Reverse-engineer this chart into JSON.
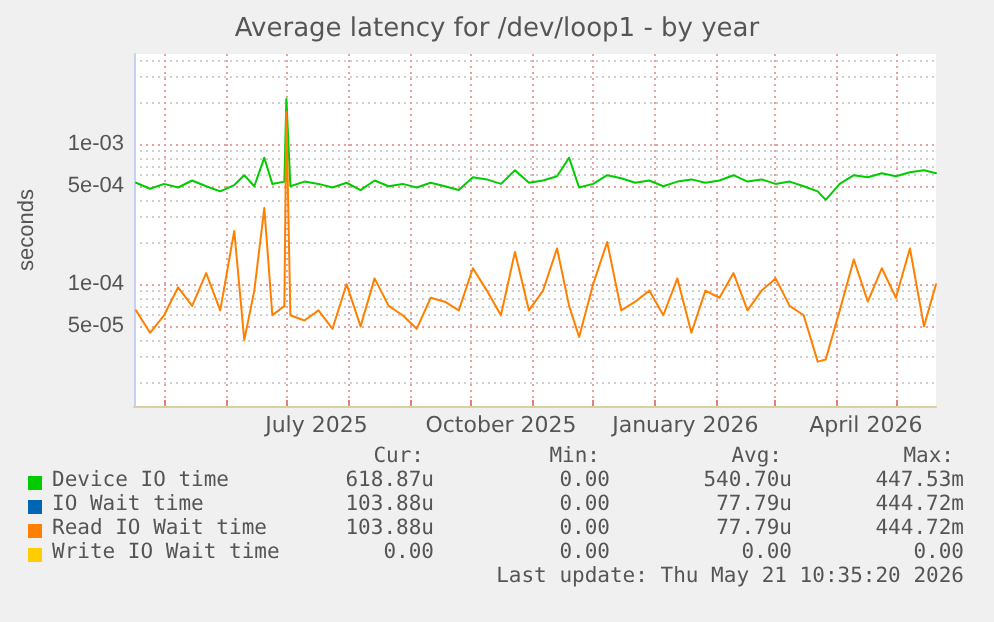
{
  "chart_data": {
    "type": "line",
    "title": "Average latency for /dev/loop1 - by year",
    "ylabel": "seconds",
    "log": "y",
    "grid": true,
    "legend": "bottom",
    "line_style": "solid",
    "marker": "none",
    "xlim": [
      "2025-04-16",
      "2026-05-21"
    ],
    "xticks": [
      {
        "value": "2025-05-01",
        "label": null
      },
      {
        "value": "2025-06-01",
        "label": null
      },
      {
        "value": "2025-07-01",
        "label": null
      },
      {
        "value": "2025-07-16",
        "label": "July 2025"
      },
      {
        "value": "2025-08-01",
        "label": null
      },
      {
        "value": "2025-09-01",
        "label": null
      },
      {
        "value": "2025-10-01",
        "label": null
      },
      {
        "value": "2025-10-16",
        "label": "October 2025"
      },
      {
        "value": "2025-11-01",
        "label": null
      },
      {
        "value": "2025-12-01",
        "label": null
      },
      {
        "value": "2026-01-01",
        "label": null
      },
      {
        "value": "2026-01-16",
        "label": "January 2026"
      },
      {
        "value": "2026-02-01",
        "label": null
      },
      {
        "value": "2026-03-01",
        "label": null
      },
      {
        "value": "2026-04-01",
        "label": null
      },
      {
        "value": "2026-04-16",
        "label": "April 2026"
      },
      {
        "value": "2026-05-01",
        "label": null
      }
    ],
    "ylim": [
      1.35e-05,
      0.0044
    ],
    "yticks": [
      {
        "value": 2e-05,
        "label": null
      },
      {
        "value": 3e-05,
        "label": null
      },
      {
        "value": 4e-05,
        "label": null
      },
      {
        "value": 5e-05,
        "label": "5e-05"
      },
      {
        "value": 6e-05,
        "label": null
      },
      {
        "value": 7e-05,
        "label": null
      },
      {
        "value": 8e-05,
        "label": null
      },
      {
        "value": 9e-05,
        "label": null
      },
      {
        "value": 0.0001,
        "label": "1e-04"
      },
      {
        "value": 0.0002,
        "label": null
      },
      {
        "value": 0.0003,
        "label": null
      },
      {
        "value": 0.0004,
        "label": null
      },
      {
        "value": 0.0005,
        "label": "5e-04"
      },
      {
        "value": 0.0006,
        "label": null
      },
      {
        "value": 0.0007,
        "label": null
      },
      {
        "value": 0.0008,
        "label": null
      },
      {
        "value": 0.0009,
        "label": null
      },
      {
        "value": 0.001,
        "label": "1e-03"
      },
      {
        "value": 0.002,
        "label": null
      },
      {
        "value": 0.003,
        "label": null
      },
      {
        "value": 0.004,
        "label": null
      }
    ],
    "x": [
      "2025-04-17",
      "2025-04-24",
      "2025-05-01",
      "2025-05-08",
      "2025-05-15",
      "2025-05-22",
      "2025-05-29",
      "2025-06-05",
      "2025-06-10",
      "2025-06-15",
      "2025-06-20",
      "2025-06-24",
      "2025-06-30",
      "2025-07-01",
      "2025-07-03",
      "2025-07-10",
      "2025-07-17",
      "2025-07-24",
      "2025-07-31",
      "2025-08-07",
      "2025-08-14",
      "2025-08-21",
      "2025-08-28",
      "2025-09-04",
      "2025-09-11",
      "2025-09-18",
      "2025-09-25",
      "2025-10-02",
      "2025-10-09",
      "2025-10-16",
      "2025-10-23",
      "2025-10-30",
      "2025-11-06",
      "2025-11-13",
      "2025-11-19",
      "2025-11-24",
      "2025-12-01",
      "2025-12-08",
      "2025-12-15",
      "2025-12-22",
      "2025-12-29",
      "2026-01-05",
      "2026-01-12",
      "2026-01-19",
      "2026-01-26",
      "2026-02-02",
      "2026-02-09",
      "2026-02-16",
      "2026-02-23",
      "2026-03-02",
      "2026-03-09",
      "2026-03-16",
      "2026-03-23",
      "2026-03-27",
      "2026-04-03",
      "2026-04-10",
      "2026-04-17",
      "2026-04-24",
      "2026-05-01",
      "2026-05-08",
      "2026-05-15",
      "2026-05-21"
    ],
    "series": [
      {
        "name": "Device IO time",
        "color": "#00cc00",
        "values": [
          0.00053,
          0.00048,
          0.00052,
          0.00049,
          0.00055,
          0.0005,
          0.00046,
          0.00051,
          0.0006,
          0.0005,
          0.0008,
          0.00052,
          0.00054,
          0.0021,
          0.0005,
          0.00054,
          0.00052,
          0.00049,
          0.00053,
          0.00047,
          0.00055,
          0.0005,
          0.00052,
          0.00049,
          0.00053,
          0.0005,
          0.00047,
          0.00058,
          0.00056,
          0.00052,
          0.00065,
          0.00053,
          0.00055,
          0.00059,
          0.0008,
          0.00049,
          0.00052,
          0.0006,
          0.00057,
          0.00053,
          0.00055,
          0.0005,
          0.00054,
          0.00056,
          0.00053,
          0.00055,
          0.0006,
          0.00054,
          0.00056,
          0.00052,
          0.00054,
          0.0005,
          0.00046,
          0.0004,
          0.00052,
          0.0006,
          0.00058,
          0.00062,
          0.00059,
          0.00063,
          0.00065,
          0.00062
        ]
      },
      {
        "name": "IO Wait time",
        "color": "#0066b3",
        "values": [
          null,
          null,
          null,
          null,
          null,
          null,
          null,
          null,
          null,
          null,
          null,
          null,
          null,
          null,
          null,
          null,
          null,
          null,
          null,
          null,
          null,
          null,
          null,
          null,
          null,
          null,
          null,
          null,
          null,
          null,
          null,
          null,
          null,
          null,
          null,
          null,
          null,
          null,
          null,
          null,
          null,
          null,
          null,
          null,
          null,
          null,
          null,
          null,
          null,
          null,
          null,
          null,
          null,
          null,
          null,
          null,
          null,
          null,
          null,
          null,
          null,
          null
        ]
      },
      {
        "name": "Read IO Wait time",
        "color": "#ff8000",
        "values": [
          6.5e-05,
          4.5e-05,
          6e-05,
          9.5e-05,
          7e-05,
          0.00012,
          6.5e-05,
          0.00024,
          4e-05,
          9e-05,
          0.00035,
          6e-05,
          7e-05,
          0.0017,
          6e-05,
          5.5e-05,
          6.5e-05,
          4.8e-05,
          0.0001,
          5e-05,
          0.00011,
          7e-05,
          6e-05,
          4.8e-05,
          8e-05,
          7.5e-05,
          6.5e-05,
          0.00013,
          9e-05,
          6e-05,
          0.00017,
          6.5e-05,
          9e-05,
          0.00018,
          7e-05,
          4.2e-05,
          0.0001,
          0.0002,
          6.5e-05,
          7.5e-05,
          9e-05,
          6e-05,
          0.00011,
          4.5e-05,
          9e-05,
          8e-05,
          0.00012,
          6.5e-05,
          9e-05,
          0.00011,
          7e-05,
          6e-05,
          2.8e-05,
          2.9e-05,
          6.5e-05,
          0.00015,
          7.5e-05,
          0.00013,
          8e-05,
          0.00018,
          5e-05,
          0.0001
        ]
      },
      {
        "name": "Write IO Wait time",
        "color": "#ffcc00",
        "values": [
          null,
          null,
          null,
          null,
          null,
          null,
          null,
          null,
          null,
          null,
          null,
          null,
          null,
          null,
          null,
          null,
          null,
          null,
          null,
          null,
          null,
          null,
          null,
          null,
          null,
          null,
          null,
          null,
          null,
          null,
          null,
          null,
          null,
          null,
          null,
          null,
          null,
          null,
          null,
          null,
          null,
          null,
          null,
          null,
          null,
          null,
          null,
          null,
          null,
          null,
          null,
          null,
          null,
          null,
          null,
          null,
          null,
          null,
          null,
          null,
          null,
          null
        ]
      }
    ],
    "annotations": [
      "Cur:",
      "Min:",
      "Avg:",
      "Max:",
      "618.87u",
      "0.00",
      "540.70u",
      "447.53m",
      "103.88u",
      "0.00",
      "77.79u",
      "444.72m",
      "103.88u",
      "0.00",
      "77.79u",
      "444.72m",
      "0.00",
      "0.00",
      "0.00",
      "0.00",
      "Last update: Thu May 21 10:35:20 2026"
    ]
  }
}
